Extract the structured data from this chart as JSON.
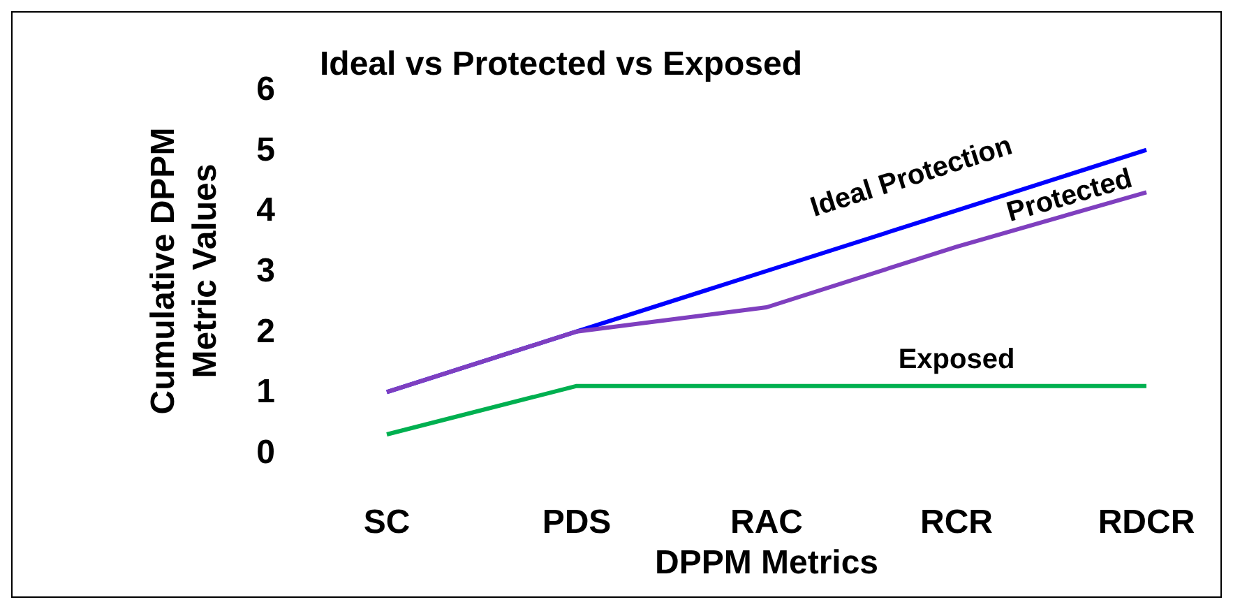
{
  "chart_data": {
    "type": "line",
    "title": "Ideal vs Protected vs Exposed",
    "xlabel": "DPPM Metrics",
    "ylabel": "Cumulative DPPM\nMetric Values",
    "categories": [
      "SC",
      "PDS",
      "RAC",
      "RCR",
      "RDCR"
    ],
    "ylim": [
      0,
      6
    ],
    "yticks": [
      0,
      1,
      2,
      3,
      4,
      5,
      6
    ],
    "grid": false,
    "legend": false,
    "marker": "none",
    "line_style": "solid",
    "series": [
      {
        "name": "Ideal Protection",
        "color": "#0000ff",
        "values": [
          1,
          2,
          3,
          4,
          5
        ]
      },
      {
        "name": "Protected",
        "color": "#7f3fbf",
        "values": [
          1,
          2,
          2.4,
          3.4,
          4.3
        ]
      },
      {
        "name": "Exposed",
        "color": "#00b050",
        "values": [
          0.3,
          1.1,
          1.1,
          1.1,
          1.1
        ]
      }
    ]
  }
}
